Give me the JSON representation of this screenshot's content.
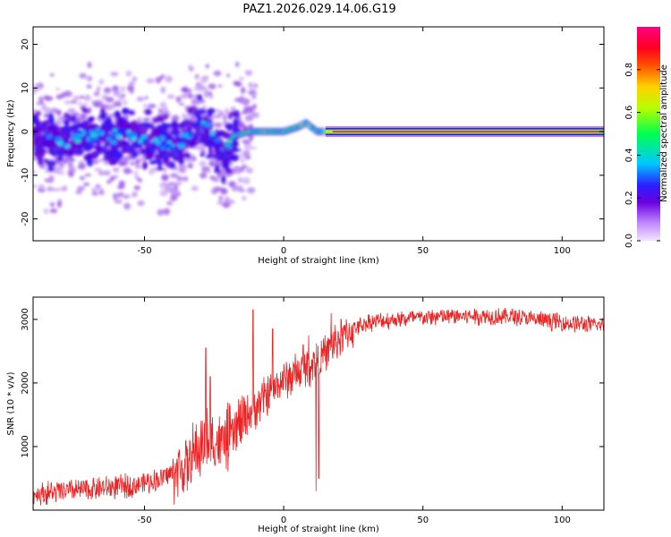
{
  "title": "PAZ1.2026.029.14.06.G19",
  "chart_data": [
    {
      "type": "heatmap",
      "xlabel": "Height of straight line (km)",
      "ylabel": "Frequency (Hz)",
      "xlim": [
        -90,
        115
      ],
      "ylim": [
        -25,
        24
      ],
      "xticks": [
        -50,
        0,
        50,
        100
      ],
      "yticks": [
        -20,
        -10,
        0,
        10,
        20
      ],
      "colorbar": {
        "label": "Normalized spectral amplitude",
        "range": [
          0,
          1
        ],
        "ticks": [
          "0.0",
          "0.2",
          "0.4",
          "0.6",
          "0.8"
        ],
        "colors": [
          "#ecd9ff",
          "#6200d8",
          "#2020ff",
          "#00d0ff",
          "#00ff60",
          "#c8ff00",
          "#ffc000",
          "#ff2000",
          "#ff0080"
        ]
      },
      "ridge_center_hz": [
        [
          -88,
          -2
        ],
        [
          -80,
          -3
        ],
        [
          -72,
          -1
        ],
        [
          -65,
          -1
        ],
        [
          -55,
          -1
        ],
        [
          -45,
          -2
        ],
        [
          -38,
          -4
        ],
        [
          -32,
          2
        ],
        [
          -27,
          0
        ],
        [
          -22,
          -5
        ],
        [
          -18,
          -1
        ],
        [
          -12,
          0
        ],
        [
          -5,
          0
        ],
        [
          0,
          0
        ],
        [
          5,
          1
        ],
        [
          8,
          2
        ],
        [
          12,
          0
        ],
        [
          20,
          0
        ],
        [
          60,
          0
        ],
        [
          115,
          0
        ]
      ]
    },
    {
      "type": "line",
      "xlabel": "Height of straight line (km)",
      "ylabel": "SNR (10 * v/v)",
      "xlim": [
        -90,
        115
      ],
      "ylim": [
        0,
        3350
      ],
      "xticks": [
        -50,
        0,
        50,
        100
      ],
      "yticks": [
        1000,
        2000,
        3000
      ],
      "color": "#ee2222",
      "trend": [
        [
          -90,
          250
        ],
        [
          -70,
          330
        ],
        [
          -55,
          380
        ],
        [
          -45,
          480
        ],
        [
          -35,
          700
        ],
        [
          -28,
          1100
        ],
        [
          -22,
          1050
        ],
        [
          -18,
          1200
        ],
        [
          -12,
          1550
        ],
        [
          -5,
          1850
        ],
        [
          0,
          2050
        ],
        [
          5,
          2150
        ],
        [
          10,
          2300
        ],
        [
          15,
          2450
        ],
        [
          20,
          2700
        ],
        [
          25,
          2850
        ],
        [
          30,
          2950
        ],
        [
          40,
          3000
        ],
        [
          60,
          3050
        ],
        [
          80,
          3050
        ],
        [
          100,
          2950
        ],
        [
          115,
          2900
        ]
      ],
      "spikes": [
        [
          -28,
          2550
        ],
        [
          -11,
          3150
        ],
        [
          -4,
          2850
        ],
        [
          7,
          2600
        ],
        [
          9,
          2750
        ],
        [
          11.5,
          300
        ],
        [
          12.5,
          500
        ],
        [
          17,
          3100
        ],
        [
          -26.5,
          2100
        ]
      ]
    }
  ]
}
